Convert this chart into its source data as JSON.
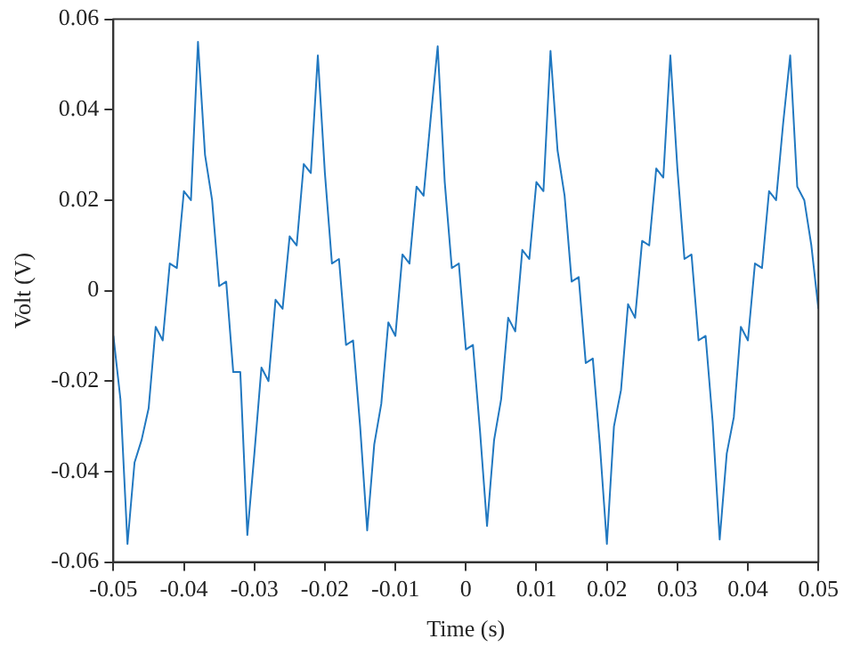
{
  "chart_data": {
    "type": "line",
    "xlabel": "Time (s)",
    "ylabel": "Volt (V)",
    "xlim": [
      -0.05,
      0.05
    ],
    "xticks": [
      -0.05,
      -0.04,
      -0.03,
      -0.02,
      -0.01,
      0,
      0.01,
      0.02,
      0.03,
      0.04,
      0.05
    ],
    "ylim": [
      -0.06,
      0.06
    ],
    "yticks": [
      -0.06,
      -0.04,
      -0.02,
      0,
      0.02,
      0.04,
      0.06
    ],
    "grid": false,
    "legend": false,
    "marker": "none",
    "line_style": "solid",
    "x": [
      -0.05,
      -0.049,
      -0.048,
      -0.047,
      -0.046,
      -0.045,
      -0.044,
      -0.043,
      -0.042,
      -0.041,
      -0.04,
      -0.039,
      -0.038,
      -0.037,
      -0.036,
      -0.035,
      -0.034,
      -0.033,
      -0.032,
      -0.031,
      -0.03,
      -0.029,
      -0.028,
      -0.027,
      -0.026,
      -0.025,
      -0.024,
      -0.023,
      -0.022,
      -0.021,
      -0.02,
      -0.019,
      -0.018,
      -0.017,
      -0.016,
      -0.015,
      -0.014,
      -0.013,
      -0.012,
      -0.011,
      -0.01,
      -0.009,
      -0.008,
      -0.007,
      -0.006,
      -0.005,
      -0.004,
      -0.003,
      -0.002,
      -0.001,
      0,
      0.001,
      0.002,
      0.003,
      0.004,
      0.005,
      0.006,
      0.007,
      0.008,
      0.009,
      0.01,
      0.011,
      0.012,
      0.013,
      0.014,
      0.015,
      0.016,
      0.017,
      0.018,
      0.019,
      0.02,
      0.021,
      0.022,
      0.023,
      0.024,
      0.025,
      0.026,
      0.027,
      0.028,
      0.029,
      0.03,
      0.031,
      0.032,
      0.033,
      0.034,
      0.035,
      0.036,
      0.037,
      0.038,
      0.039,
      0.04,
      0.041,
      0.042,
      0.043,
      0.044,
      0.045,
      0.046,
      0.047,
      0.048,
      0.049,
      0.05
    ],
    "series": [
      {
        "color": "#2178c0",
        "values": [
          -0.01,
          -0.024,
          -0.056,
          -0.038,
          -0.033,
          -0.026,
          -0.008,
          -0.011,
          0.006,
          0.005,
          0.022,
          0.02,
          0.055,
          0.03,
          0.02,
          0.001,
          0.002,
          -0.018,
          -0.018,
          -0.054,
          -0.036,
          -0.017,
          -0.02,
          -0.002,
          -0.004,
          0.012,
          0.01,
          0.028,
          0.026,
          0.052,
          0.026,
          0.006,
          0.007,
          -0.012,
          -0.011,
          -0.03,
          -0.053,
          -0.034,
          -0.025,
          -0.007,
          -0.01,
          0.008,
          0.006,
          0.023,
          0.021,
          0.038,
          0.054,
          0.024,
          0.005,
          0.006,
          -0.013,
          -0.012,
          -0.031,
          -0.052,
          -0.033,
          -0.024,
          -0.006,
          -0.009,
          0.009,
          0.007,
          0.024,
          0.022,
          0.053,
          0.031,
          0.021,
          0.002,
          0.003,
          -0.016,
          -0.015,
          -0.034,
          -0.056,
          -0.03,
          -0.022,
          -0.003,
          -0.006,
          0.011,
          0.01,
          0.027,
          0.025,
          0.052,
          0.027,
          0.007,
          0.008,
          -0.011,
          -0.01,
          -0.029,
          -0.055,
          -0.036,
          -0.028,
          -0.008,
          -0.011,
          0.006,
          0.005,
          0.022,
          0.02,
          0.037,
          0.052,
          0.023,
          0.02,
          0.01,
          -0.004
        ]
      }
    ]
  }
}
